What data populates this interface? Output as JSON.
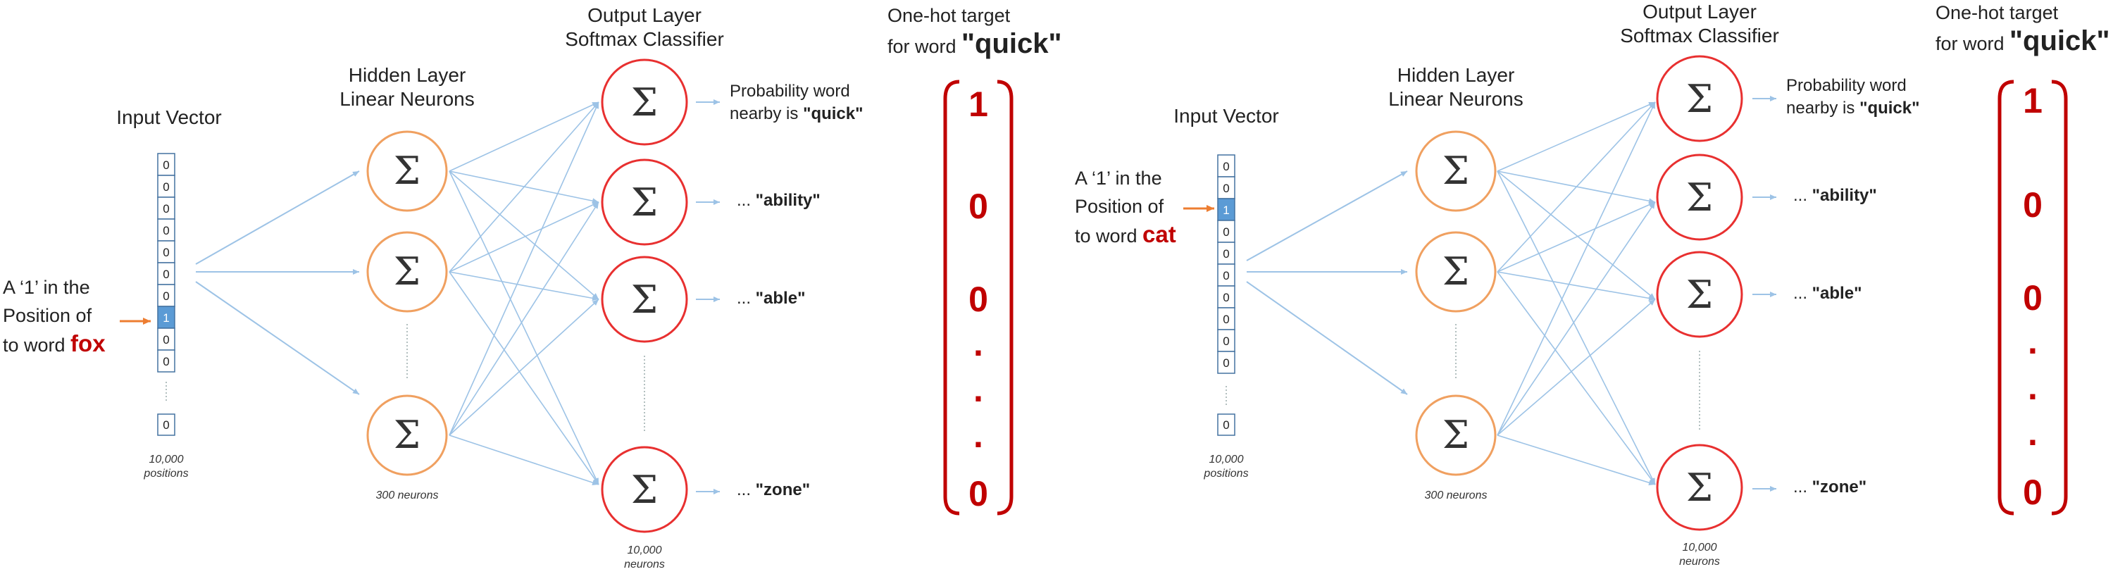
{
  "diagrams": [
    {
      "input_title": "Input Vector",
      "input_cells": [
        "0",
        "0",
        "0",
        "0",
        "0",
        "0",
        "0",
        "1",
        "0",
        "0"
      ],
      "input_last_cell": "0",
      "input_caption": [
        "10,000",
        "positions"
      ],
      "input_desc": [
        "A ‘1’ in the",
        "Position of",
        "to word "
      ],
      "input_word": "fox",
      "hidden_title": [
        "Hidden Layer",
        "Linear Neurons"
      ],
      "hidden_caption": "300 neurons",
      "output_title": [
        "Output Layer",
        "Softmax Classifier"
      ],
      "output_caption": [
        "10,000",
        "neurons"
      ],
      "neuron_symbol": "Σ",
      "output_labels": [
        {
          "prefix": "Probability word",
          "line2": "nearby is ",
          "word": "\"quick\""
        },
        {
          "prefix": "... ",
          "word": "\"ability\""
        },
        {
          "prefix": "... ",
          "word": "\"able\""
        },
        {
          "prefix": "... ",
          "word": "\"zone\""
        }
      ],
      "target_title": [
        "One-hot target",
        "for word "
      ],
      "target_word": "\"quick\"",
      "target_values": [
        "1",
        "0",
        "0",
        "0"
      ],
      "target_dots": [
        ".",
        ".",
        "."
      ]
    },
    {
      "input_title": "Input Vector",
      "input_cells": [
        "0",
        "0",
        "1",
        "0",
        "0",
        "0",
        "0",
        "0",
        "0",
        "0"
      ],
      "input_last_cell": "0",
      "input_caption": [
        "10,000",
        "positions"
      ],
      "input_desc": [
        "A ‘1’ in the",
        "Position of",
        "to word "
      ],
      "input_word": "cat",
      "hidden_title": [
        "Hidden Layer",
        "Linear Neurons"
      ],
      "hidden_caption": "300 neurons",
      "output_title": [
        "Output Layer",
        "Softmax Classifier"
      ],
      "output_caption": [
        "10,000",
        "neurons"
      ],
      "neuron_symbol": "Σ",
      "output_labels": [
        {
          "prefix": "Probability word",
          "line2": "nearby is ",
          "word": "\"quick\""
        },
        {
          "prefix": "... ",
          "word": "\"ability\""
        },
        {
          "prefix": "... ",
          "word": "\"able\""
        },
        {
          "prefix": "... ",
          "word": "\"zone\""
        }
      ],
      "target_title": [
        "One-hot target",
        "for word "
      ],
      "target_word": "\"quick\"",
      "target_values": [
        "1",
        "0",
        "0",
        "0"
      ],
      "target_dots": [
        ".",
        ".",
        "."
      ]
    }
  ],
  "colors": {
    "hidden_neuron": "#f0a060",
    "output_neuron": "#e83030",
    "connection": "#9dc3e6",
    "active_cell": "#5b9bd5",
    "cell_border": "#4472a0",
    "accent_red": "#c00000",
    "pointer_arrow": "#ed7d31"
  }
}
